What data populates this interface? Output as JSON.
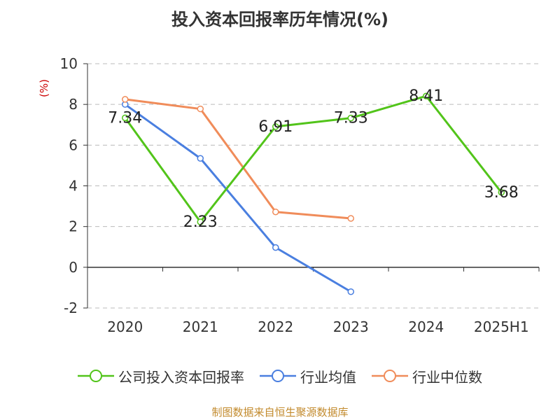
{
  "title": "投入资本回报率历年情况(%)",
  "source": "制图数据来自恒生聚源数据库",
  "colors": {
    "company": "#52c41a",
    "industry_avg": "#4a7fe0",
    "industry_median": "#f08c5a",
    "axis": "#333333",
    "grid": "#bbbbbb",
    "unit": "#cc0000"
  },
  "chart_data": {
    "type": "line",
    "title": "投入资本回报率历年情况(%)",
    "categories": [
      "2020",
      "2021",
      "2022",
      "2023",
      "2024",
      "2025H1"
    ],
    "ylabel": "(%)",
    "ylim": [
      -2,
      10
    ],
    "yticks": [
      -2,
      0,
      2,
      4,
      6,
      8,
      10
    ],
    "grid": true,
    "legend_position": "bottom",
    "series": [
      {
        "name": "公司投入资本回报率",
        "color_key": "company",
        "values": [
          7.34,
          2.23,
          6.91,
          7.33,
          8.41,
          3.68
        ],
        "labels": [
          "7.34",
          "2.23",
          "6.91",
          "7.33",
          "8.41",
          "3.68"
        ]
      },
      {
        "name": "行业均值",
        "color_key": "industry_avg",
        "values": [
          8.0,
          5.35,
          0.97,
          -1.2,
          null,
          null
        ]
      },
      {
        "name": "行业中位数",
        "color_key": "industry_median",
        "values": [
          8.25,
          7.78,
          2.72,
          2.4,
          null,
          null
        ]
      }
    ]
  }
}
